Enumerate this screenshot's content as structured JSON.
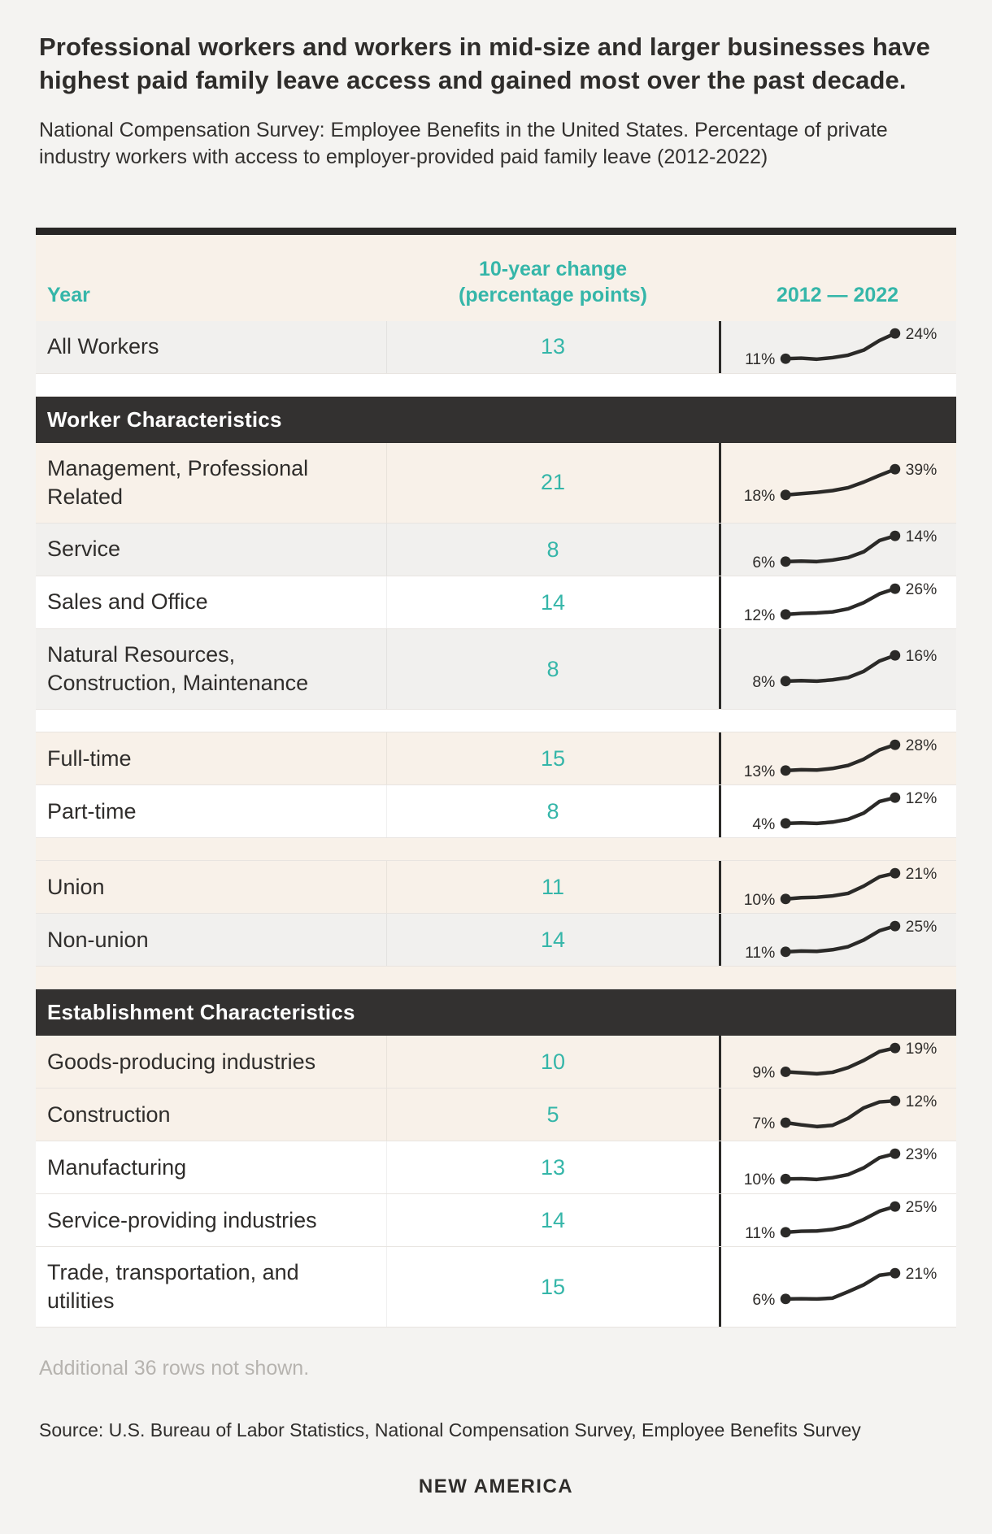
{
  "header": {
    "title": "Professional workers and workers in mid-size and larger businesses have highest paid family leave access and gained most over the past decade.",
    "subtitle": "National Compensation Survey: Employee Benefits in the United States. Percentage of private industry workers with access to employer-provided paid family leave (2012-2022)"
  },
  "footer": {
    "note": "Additional 36 rows not shown.",
    "source": "Source: U.S. Bureau of Labor Statistics, National Compensation Survey, Employee Benefits Survey",
    "brand": "NEW AMERICA"
  },
  "colors": {
    "teal_accent": "#35b6a9",
    "dark_text": "#2f2d2b",
    "section_header_bg": "#333130",
    "row_beige": "#f8f1e9",
    "row_gray": "#f1f0ee",
    "row_white": "#ffffff",
    "page_bg": "#f4f3f1",
    "sparkline": "#2b2a28",
    "table_top_border": "#282625",
    "muted_text": "#b6b3af"
  },
  "chart_data": {
    "type": "table",
    "subtype": "table-with-line-sparklines",
    "title": "Professional workers and workers in mid-size and larger businesses have highest paid family leave access and gained most over the past decade.",
    "subtitle": "National Compensation Survey: Employee Benefits in the United States. Percentage of private industry workers with access to employer-provided paid family leave (2012-2022)",
    "columns": [
      "Year",
      "10-year change (percentage points)",
      "2012 — 2022"
    ],
    "sparkline_x_range": [
      2012,
      2022
    ],
    "rows": [
      {
        "kind": "data",
        "label": "All Workers",
        "change_pp": 13,
        "pct_2012": 11,
        "pct_2022": 24,
        "tone": "gray",
        "profile": [
          0,
          0.02,
          -0.02,
          0.04,
          0.14,
          0.34,
          0.72,
          1
        ]
      },
      {
        "kind": "spacer",
        "tone": "white"
      },
      {
        "kind": "section",
        "label": "Worker Characteristics"
      },
      {
        "kind": "data",
        "label": "Management, Professional Related",
        "change_pp": 21,
        "pct_2012": 18,
        "pct_2022": 39,
        "tone": "beige",
        "profile": [
          0,
          0.05,
          0.1,
          0.17,
          0.28,
          0.5,
          0.76,
          1
        ]
      },
      {
        "kind": "data",
        "label": "Service",
        "change_pp": 8,
        "pct_2012": 6,
        "pct_2022": 14,
        "tone": "gray",
        "profile": [
          0,
          0.02,
          0,
          0.06,
          0.16,
          0.38,
          0.82,
          1
        ]
      },
      {
        "kind": "data",
        "label": "Sales and Office",
        "change_pp": 14,
        "pct_2012": 12,
        "pct_2022": 26,
        "tone": "white",
        "profile": [
          0,
          0.04,
          0.06,
          0.1,
          0.22,
          0.46,
          0.8,
          1
        ]
      },
      {
        "kind": "data",
        "label": "Natural Resources, Construction, Maintenance",
        "change_pp": 8,
        "pct_2012": 8,
        "pct_2022": 16,
        "tone": "gray",
        "profile": [
          0,
          0.02,
          0,
          0.05,
          0.14,
          0.38,
          0.78,
          1
        ]
      },
      {
        "kind": "spacer",
        "tone": "white"
      },
      {
        "kind": "data",
        "label": "Full-time",
        "change_pp": 15,
        "pct_2012": 13,
        "pct_2022": 28,
        "tone": "beige",
        "profile": [
          0,
          0.03,
          0.02,
          0.08,
          0.2,
          0.44,
          0.8,
          1
        ]
      },
      {
        "kind": "data",
        "label": "Part-time",
        "change_pp": 8,
        "pct_2012": 4,
        "pct_2022": 12,
        "tone": "white",
        "profile": [
          0,
          0.02,
          0,
          0.05,
          0.16,
          0.4,
          0.85,
          1
        ]
      },
      {
        "kind": "spacer",
        "tone": "beige"
      },
      {
        "kind": "data",
        "label": "Union",
        "change_pp": 11,
        "pct_2012": 10,
        "pct_2022": 21,
        "tone": "beige",
        "profile": [
          0,
          0.05,
          0.07,
          0.12,
          0.22,
          0.5,
          0.86,
          1
        ]
      },
      {
        "kind": "data",
        "label": "Non-union",
        "change_pp": 14,
        "pct_2012": 11,
        "pct_2022": 25,
        "tone": "gray",
        "profile": [
          0,
          0.03,
          0.02,
          0.08,
          0.2,
          0.46,
          0.82,
          1
        ]
      },
      {
        "kind": "spacer",
        "tone": "beige"
      },
      {
        "kind": "section",
        "label": "Establishment Characteristics"
      },
      {
        "kind": "data",
        "label": "Goods-producing industries",
        "change_pp": 10,
        "pct_2012": 9,
        "pct_2022": 19,
        "tone": "beige",
        "profile": [
          0,
          -0.04,
          -0.08,
          -0.02,
          0.18,
          0.48,
          0.85,
          1
        ]
      },
      {
        "kind": "data",
        "label": "Construction",
        "change_pp": 5,
        "pct_2012": 7,
        "pct_2022": 12,
        "tone": "beige",
        "profile": [
          0,
          -0.1,
          -0.18,
          -0.12,
          0.2,
          0.68,
          0.95,
          1
        ]
      },
      {
        "kind": "data",
        "label": "Manufacturing",
        "change_pp": 13,
        "pct_2012": 10,
        "pct_2022": 23,
        "tone": "white",
        "profile": [
          0,
          0.01,
          -0.02,
          0.05,
          0.17,
          0.44,
          0.84,
          1
        ]
      },
      {
        "kind": "data",
        "label": "Service-providing industries",
        "change_pp": 14,
        "pct_2012": 11,
        "pct_2022": 25,
        "tone": "white",
        "profile": [
          0,
          0.04,
          0.05,
          0.11,
          0.24,
          0.5,
          0.82,
          1
        ]
      },
      {
        "kind": "data",
        "label": "Trade, transportation, and utilities",
        "change_pp": 15,
        "pct_2012": 6,
        "pct_2022": 21,
        "tone": "white",
        "profile": [
          0,
          0.01,
          0,
          0.03,
          0.28,
          0.55,
          0.92,
          1
        ]
      }
    ]
  }
}
